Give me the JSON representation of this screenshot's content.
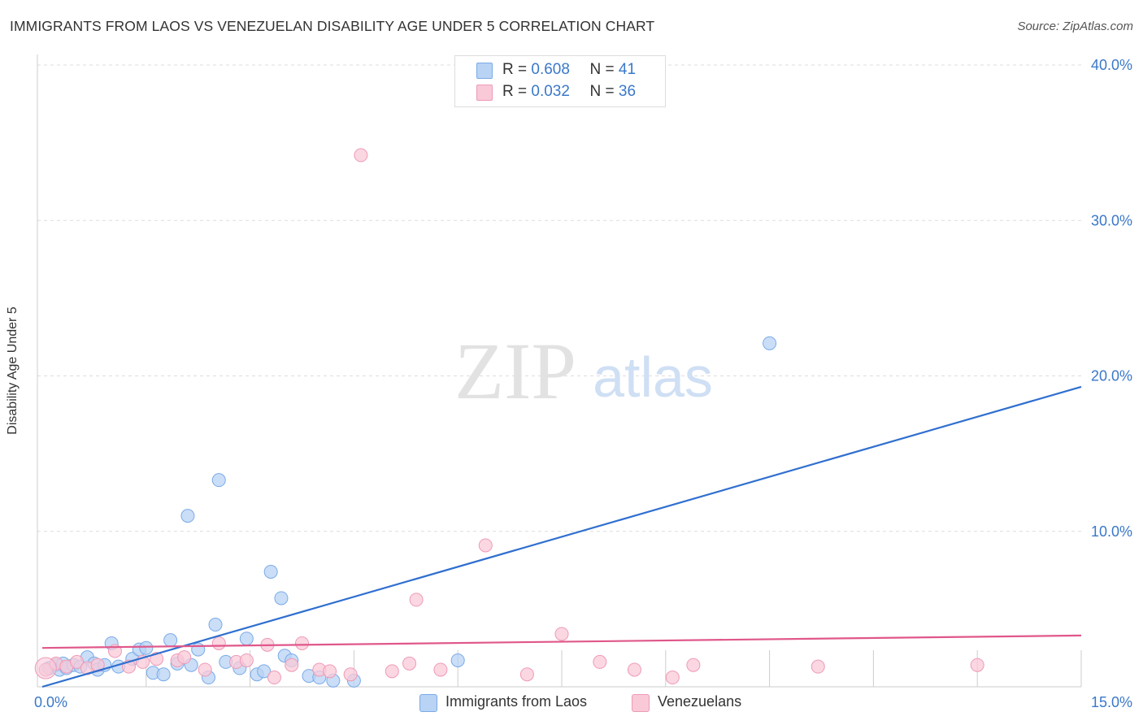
{
  "chart_data": {
    "type": "scatter",
    "title": "IMMIGRANTS FROM LAOS VS VENEZUELAN DISABILITY AGE UNDER 5 CORRELATION CHART",
    "source": "Source: ZipAtlas.com",
    "watermark": {
      "zip": "ZIP",
      "atlas": "atlas"
    },
    "xlabel": "",
    "ylabel": "Disability Age Under 5",
    "xlim": [
      0,
      15
    ],
    "ylim": [
      0,
      40
    ],
    "x_tick_labels": {
      "min": "0.0%",
      "max": "15.0%"
    },
    "y_ticks": [
      {
        "value": 10,
        "label": "10.0%"
      },
      {
        "value": 20,
        "label": "20.0%"
      },
      {
        "value": 30,
        "label": "30.0%"
      },
      {
        "value": 40,
        "label": "40.0%"
      }
    ],
    "grid": true,
    "legend_stats": [
      {
        "r_label": "R =",
        "r_value": "0.608",
        "n_label": "N =",
        "n_value": "41"
      },
      {
        "r_label": "R =",
        "r_value": "0.032",
        "n_label": "N =",
        "n_value": "36"
      }
    ],
    "series": [
      {
        "name": "Immigrants from Laos",
        "color": "#7aaae8",
        "fill": "#b8d3f4",
        "line_color": "#2f6fcf",
        "trend": {
          "x0": 0.0,
          "y0": 0.0,
          "x1": 15.0,
          "y1": 19.3
        },
        "points": [
          [
            0.1,
            1.2
          ],
          [
            0.2,
            1.4
          ],
          [
            0.25,
            1.1
          ],
          [
            0.3,
            1.5
          ],
          [
            0.35,
            1.2
          ],
          [
            0.45,
            1.4
          ],
          [
            0.55,
            1.3
          ],
          [
            0.65,
            1.9
          ],
          [
            0.75,
            1.5
          ],
          [
            0.8,
            1.1
          ],
          [
            0.9,
            1.4
          ],
          [
            1.0,
            2.8
          ],
          [
            1.1,
            1.3
          ],
          [
            1.3,
            1.8
          ],
          [
            1.4,
            2.4
          ],
          [
            1.5,
            2.5
          ],
          [
            1.6,
            0.9
          ],
          [
            1.75,
            0.8
          ],
          [
            1.85,
            3.0
          ],
          [
            1.95,
            1.5
          ],
          [
            2.1,
            11.0
          ],
          [
            2.15,
            1.4
          ],
          [
            2.25,
            2.4
          ],
          [
            2.4,
            0.6
          ],
          [
            2.5,
            4.0
          ],
          [
            2.55,
            13.3
          ],
          [
            2.65,
            1.6
          ],
          [
            2.85,
            1.2
          ],
          [
            2.95,
            3.1
          ],
          [
            3.1,
            0.8
          ],
          [
            3.2,
            1.0
          ],
          [
            3.3,
            7.4
          ],
          [
            3.45,
            5.7
          ],
          [
            3.5,
            2.0
          ],
          [
            3.6,
            1.7
          ],
          [
            3.85,
            0.7
          ],
          [
            4.0,
            0.6
          ],
          [
            4.2,
            0.4
          ],
          [
            4.5,
            0.4
          ],
          [
            6.0,
            1.7
          ],
          [
            10.5,
            22.1
          ]
        ]
      },
      {
        "name": "Venezuelans",
        "color": "#ee9ab6",
        "fill": "#f9c9d8",
        "line_color": "#e0578a",
        "trend": {
          "x0": 0.0,
          "y0": 2.5,
          "x1": 15.0,
          "y1": 3.3
        },
        "points": [
          [
            0.05,
            1.1
          ],
          [
            0.2,
            1.5
          ],
          [
            0.35,
            1.3
          ],
          [
            0.5,
            1.6
          ],
          [
            0.65,
            1.2
          ],
          [
            0.8,
            1.4
          ],
          [
            1.05,
            2.3
          ],
          [
            1.25,
            1.3
          ],
          [
            1.45,
            1.6
          ],
          [
            1.65,
            1.8
          ],
          [
            1.95,
            1.7
          ],
          [
            2.05,
            1.9
          ],
          [
            2.35,
            1.1
          ],
          [
            2.55,
            2.8
          ],
          [
            2.8,
            1.6
          ],
          [
            2.95,
            1.7
          ],
          [
            3.25,
            2.7
          ],
          [
            3.35,
            0.6
          ],
          [
            3.6,
            1.4
          ],
          [
            3.75,
            2.8
          ],
          [
            4.0,
            1.1
          ],
          [
            4.15,
            1.0
          ],
          [
            4.45,
            0.8
          ],
          [
            4.6,
            34.2
          ],
          [
            5.05,
            1.0
          ],
          [
            5.3,
            1.5
          ],
          [
            5.4,
            5.6
          ],
          [
            5.75,
            1.1
          ],
          [
            6.4,
            9.1
          ],
          [
            7.0,
            0.8
          ],
          [
            7.5,
            3.4
          ],
          [
            8.05,
            1.6
          ],
          [
            8.55,
            1.1
          ],
          [
            9.1,
            0.6
          ],
          [
            9.4,
            1.4
          ],
          [
            11.2,
            1.3
          ]
        ],
        "extra_points": [
          [
            13.5,
            1.4
          ]
        ]
      }
    ]
  }
}
